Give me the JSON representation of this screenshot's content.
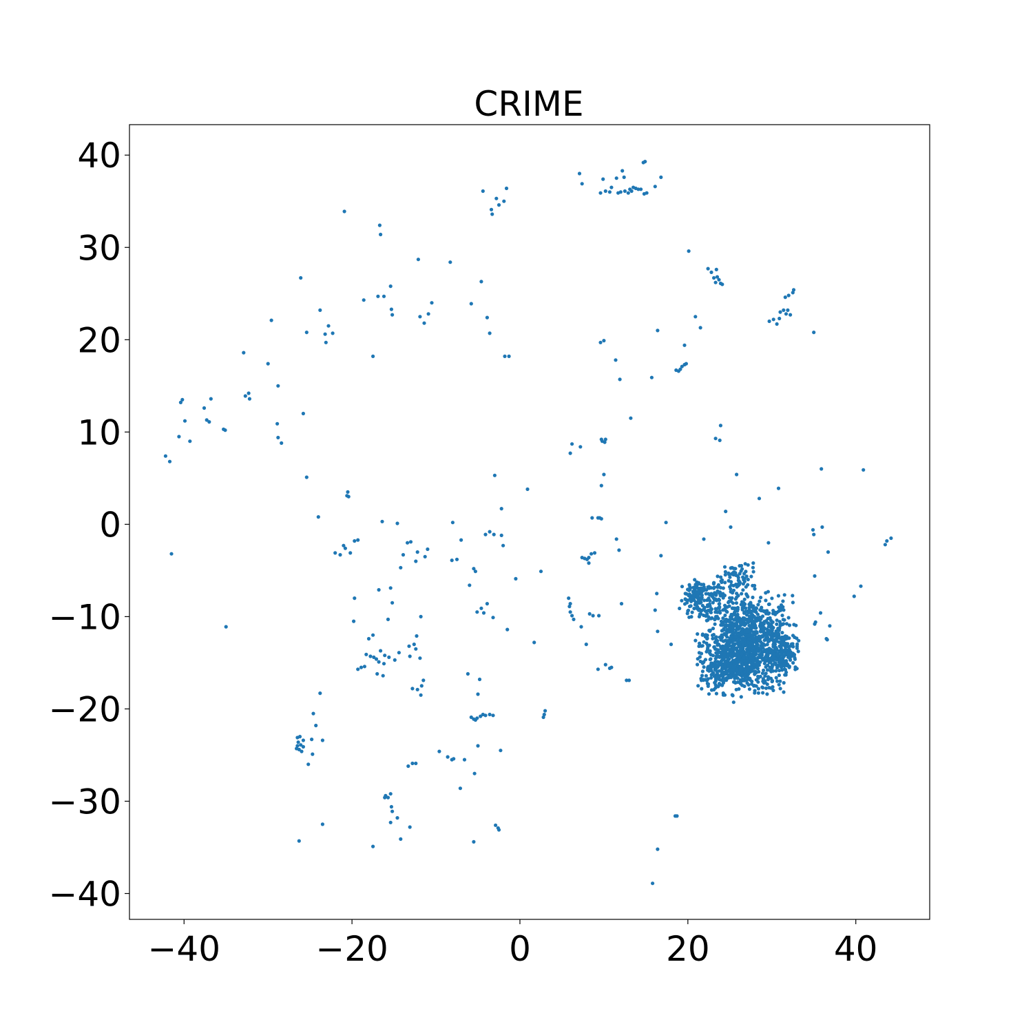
{
  "chart_data": {
    "type": "scatter",
    "title": "CRIME",
    "xlabel": "",
    "ylabel": "",
    "xlim": [
      -46.5,
      48.8
    ],
    "ylim": [
      -42.8,
      43.3
    ],
    "xticks": [
      -40,
      -20,
      0,
      20,
      40
    ],
    "yticks": [
      -40,
      -30,
      -20,
      -10,
      0,
      10,
      20,
      30,
      40
    ],
    "xtick_labels": [
      "−40",
      "−20",
      "0",
      "20",
      "40"
    ],
    "ytick_labels": [
      "−40",
      "−30",
      "−20",
      "−10",
      "0",
      "10",
      "20",
      "30",
      "40"
    ],
    "grid": false,
    "marker_color": "#1f77b4",
    "points": [
      [
        -42.2,
        7.4
      ],
      [
        -41.7,
        6.8
      ],
      [
        -41.5,
        -3.2
      ],
      [
        -40.6,
        9.5
      ],
      [
        -40.4,
        13.2
      ],
      [
        -40.2,
        13.5
      ],
      [
        -39.9,
        11.2
      ],
      [
        -39.3,
        9.0
      ],
      [
        -37.6,
        12.6
      ],
      [
        -37.3,
        11.3
      ],
      [
        -37.0,
        11.1
      ],
      [
        -36.8,
        13.6
      ],
      [
        -35.3,
        10.3
      ],
      [
        -35.1,
        10.2
      ],
      [
        -35.0,
        -11.1
      ],
      [
        -32.9,
        18.6
      ],
      [
        -32.7,
        13.9
      ],
      [
        -32.3,
        14.2
      ],
      [
        -32.2,
        13.6
      ],
      [
        -30.0,
        17.4
      ],
      [
        -29.6,
        22.1
      ],
      [
        -28.9,
        10.9
      ],
      [
        -28.8,
        15.0
      ],
      [
        -28.8,
        9.4
      ],
      [
        -28.4,
        8.8
      ],
      [
        -26.1,
        26.7
      ],
      [
        -25.8,
        12.0
      ],
      [
        -25.4,
        20.8
      ],
      [
        -25.4,
        5.1
      ],
      [
        -24.0,
        0.8
      ],
      [
        -23.8,
        23.2
      ],
      [
        -23.2,
        20.6
      ],
      [
        -23.1,
        19.7
      ],
      [
        -22.8,
        21.5
      ],
      [
        -22.3,
        20.7
      ],
      [
        -20.9,
        33.9
      ],
      [
        -20.6,
        3.1
      ],
      [
        -20.5,
        3.5
      ],
      [
        -20.4,
        3.0
      ],
      [
        -22.0,
        -3.1
      ],
      [
        -21.4,
        -3.3
      ],
      [
        -21.0,
        -2.3
      ],
      [
        -20.8,
        -2.6
      ],
      [
        -20.2,
        -3.1
      ],
      [
        -19.7,
        -1.8
      ],
      [
        -19.3,
        -1.7
      ],
      [
        -18.6,
        24.3
      ],
      [
        -17.5,
        18.2
      ],
      [
        -16.9,
        24.7
      ],
      [
        -16.7,
        32.4
      ],
      [
        -16.6,
        31.4
      ],
      [
        -16.2,
        24.7
      ],
      [
        -15.4,
        25.8
      ],
      [
        -15.3,
        23.3
      ],
      [
        -15.2,
        22.7
      ],
      [
        -16.4,
        0.3
      ],
      [
        -14.6,
        0.1
      ],
      [
        -12.1,
        28.7
      ],
      [
        -11.9,
        22.5
      ],
      [
        -11.4,
        21.8
      ],
      [
        -10.9,
        22.8
      ],
      [
        -10.5,
        24.0
      ],
      [
        -8.3,
        28.4
      ],
      [
        -5.8,
        23.9
      ],
      [
        -4.6,
        26.3
      ],
      [
        -4.4,
        36.1
      ],
      [
        -3.9,
        22.4
      ],
      [
        -3.6,
        20.7
      ],
      [
        -3.4,
        34.1
      ],
      [
        -3.3,
        33.6
      ],
      [
        -2.8,
        35.3
      ],
      [
        -2.5,
        34.6
      ],
      [
        -1.9,
        35.0
      ],
      [
        -1.6,
        36.4
      ],
      [
        -1.8,
        18.2
      ],
      [
        -1.3,
        18.2
      ],
      [
        -2.2,
        1.7
      ],
      [
        -2.2,
        -1.2
      ],
      [
        -2.0,
        -2.3
      ],
      [
        -3.6,
        -0.8
      ],
      [
        -4.1,
        -1.1
      ],
      [
        -3.1,
        -1.1
      ],
      [
        -13.4,
        -2.0
      ],
      [
        -13.0,
        -1.9
      ],
      [
        -12.2,
        -3.0
      ],
      [
        -11.3,
        -3.5
      ],
      [
        -11.0,
        -2.7
      ],
      [
        -13.9,
        -3.3
      ],
      [
        -14.2,
        -4.7
      ],
      [
        -12.4,
        -4.0
      ],
      [
        -15.4,
        -6.9
      ],
      [
        -16.8,
        -7.1
      ],
      [
        -15.2,
        -8.5
      ],
      [
        -19.7,
        -8.0
      ],
      [
        -19.8,
        -10.5
      ],
      [
        -18.0,
        -12.4
      ],
      [
        -17.5,
        -12.0
      ],
      [
        -18.3,
        -14.1
      ],
      [
        -19.3,
        -15.7
      ],
      [
        -18.9,
        -15.5
      ],
      [
        -18.5,
        -15.4
      ],
      [
        -17.8,
        -14.3
      ],
      [
        -17.4,
        -14.4
      ],
      [
        -17.1,
        -14.6
      ],
      [
        -16.6,
        -13.7
      ],
      [
        -16.1,
        -14.2
      ],
      [
        -16.8,
        -14.9
      ],
      [
        -16.2,
        -15.1
      ],
      [
        -15.6,
        -14.4
      ],
      [
        -14.9,
        -14.7
      ],
      [
        -14.4,
        -13.9
      ],
      [
        -16.3,
        -16.4
      ],
      [
        -17.0,
        -16.2
      ],
      [
        -15.7,
        -10.3
      ],
      [
        -13.2,
        -13.2
      ],
      [
        -13.1,
        -14.3
      ],
      [
        -12.6,
        -13.0
      ],
      [
        -12.4,
        -13.5
      ],
      [
        -11.9,
        -14.5
      ],
      [
        -11.8,
        -10.0
      ],
      [
        -12.3,
        -12.1
      ],
      [
        -12.8,
        -17.8
      ],
      [
        -12.2,
        -17.9
      ],
      [
        -11.8,
        -18.5
      ],
      [
        -11.5,
        -16.9
      ],
      [
        -11.7,
        -17.5
      ],
      [
        -9.6,
        -24.6
      ],
      [
        -8.6,
        -25.2
      ],
      [
        -8.1,
        -25.5
      ],
      [
        -7.9,
        -25.4
      ],
      [
        -7.1,
        -28.6
      ],
      [
        -6.6,
        -25.5
      ],
      [
        -6.2,
        -16.2
      ],
      [
        -5.8,
        -20.9
      ],
      [
        -5.5,
        -21.1
      ],
      [
        -5.3,
        -21.2
      ],
      [
        -5.1,
        -21.0
      ],
      [
        -4.7,
        -20.8
      ],
      [
        -4.4,
        -20.6
      ],
      [
        -4.1,
        -20.7
      ],
      [
        -3.6,
        -20.6
      ],
      [
        -3.2,
        -20.7
      ],
      [
        -5.0,
        -18.4
      ],
      [
        -4.8,
        -16.8
      ],
      [
        -5.0,
        -24.0
      ],
      [
        -5.4,
        -27.0
      ],
      [
        -5.5,
        -34.4
      ],
      [
        -2.9,
        -32.6
      ],
      [
        -2.6,
        -32.9
      ],
      [
        -2.5,
        -33.1
      ],
      [
        -2.3,
        -24.5
      ],
      [
        -8.1,
        -3.9
      ],
      [
        -7.5,
        -3.8
      ],
      [
        -8.0,
        0.2
      ],
      [
        -7.0,
        -1.7
      ],
      [
        -6.0,
        -6.6
      ],
      [
        -5.5,
        -4.8
      ],
      [
        -5.3,
        -5.1
      ],
      [
        -5.1,
        -9.5
      ],
      [
        -4.6,
        -9.1
      ],
      [
        -3.9,
        -8.6
      ],
      [
        -4.3,
        -9.6
      ],
      [
        -3.2,
        -10.1
      ],
      [
        -1.5,
        -11.4
      ],
      [
        -3.0,
        5.3
      ],
      [
        0.9,
        3.8
      ],
      [
        -0.5,
        -5.9
      ],
      [
        2.5,
        -5.1
      ],
      [
        1.7,
        -12.8
      ],
      [
        3.0,
        -20.2
      ],
      [
        2.9,
        -20.6
      ],
      [
        2.8,
        -20.9
      ],
      [
        5.8,
        -8.0
      ],
      [
        5.9,
        -8.9
      ],
      [
        6.0,
        -8.6
      ],
      [
        6.0,
        -9.5
      ],
      [
        6.2,
        -9.9
      ],
      [
        6.4,
        -10.3
      ],
      [
        7.3,
        -11.1
      ],
      [
        7.9,
        -13.0
      ],
      [
        7.4,
        -3.6
      ],
      [
        7.7,
        -3.7
      ],
      [
        8.0,
        -3.8
      ],
      [
        8.2,
        -4.2
      ],
      [
        8.2,
        -3.6
      ],
      [
        8.5,
        -3.2
      ],
      [
        8.9,
        -3.1
      ],
      [
        8.3,
        -9.7
      ],
      [
        8.7,
        -9.9
      ],
      [
        9.4,
        -9.9
      ],
      [
        9.3,
        -15.7
      ],
      [
        10.2,
        -15.2
      ],
      [
        10.7,
        -15.6
      ],
      [
        10.9,
        -15.5
      ],
      [
        12.1,
        -8.6
      ],
      [
        12.7,
        -16.9
      ],
      [
        13.0,
        -16.9
      ],
      [
        11.8,
        -2.8
      ],
      [
        11.5,
        -1.6
      ],
      [
        8.6,
        0.7
      ],
      [
        9.3,
        0.7
      ],
      [
        9.5,
        0.7
      ],
      [
        9.7,
        0.6
      ],
      [
        9.7,
        4.2
      ],
      [
        10.0,
        5.4
      ],
      [
        6.0,
        7.7
      ],
      [
        6.2,
        8.7
      ],
      [
        7.2,
        8.4
      ],
      [
        9.7,
        9.2
      ],
      [
        9.8,
        9.0
      ],
      [
        10.1,
        8.9
      ],
      [
        10.2,
        9.2
      ],
      [
        13.2,
        11.5
      ],
      [
        11.4,
        17.8
      ],
      [
        11.9,
        15.7
      ],
      [
        9.6,
        19.7
      ],
      [
        10.0,
        19.9
      ],
      [
        7.1,
        38.0
      ],
      [
        7.4,
        36.9
      ],
      [
        9.6,
        35.9
      ],
      [
        9.9,
        37.4
      ],
      [
        10.2,
        36.1
      ],
      [
        10.7,
        36.0
      ],
      [
        10.9,
        36.5
      ],
      [
        11.5,
        37.5
      ],
      [
        11.7,
        35.9
      ],
      [
        12.0,
        36.0
      ],
      [
        12.2,
        38.3
      ],
      [
        12.4,
        37.6
      ],
      [
        12.5,
        36.1
      ],
      [
        12.9,
        35.9
      ],
      [
        13.1,
        36.3
      ],
      [
        13.3,
        36.1
      ],
      [
        13.5,
        36.5
      ],
      [
        13.8,
        36.4
      ],
      [
        14.1,
        36.3
      ],
      [
        14.4,
        36.3
      ],
      [
        14.7,
        39.2
      ],
      [
        14.9,
        39.3
      ],
      [
        14.8,
        35.8
      ],
      [
        15.1,
        35.9
      ],
      [
        16.1,
        36.6
      ],
      [
        16.4,
        21.0
      ],
      [
        16.8,
        37.6
      ],
      [
        15.7,
        15.9
      ],
      [
        18.6,
        16.7
      ],
      [
        18.9,
        16.6
      ],
      [
        19.1,
        16.8
      ],
      [
        19.3,
        17.1
      ],
      [
        19.6,
        17.3
      ],
      [
        19.8,
        17.4
      ],
      [
        19.6,
        19.4
      ],
      [
        20.1,
        29.6
      ],
      [
        20.9,
        22.5
      ],
      [
        21.5,
        21.3
      ],
      [
        22.4,
        27.7
      ],
      [
        22.8,
        27.3
      ],
      [
        23.1,
        26.7
      ],
      [
        23.3,
        26.2
      ],
      [
        23.4,
        27.6
      ],
      [
        23.5,
        26.8
      ],
      [
        23.7,
        26.5
      ],
      [
        23.9,
        26.1
      ],
      [
        24.1,
        26.0
      ],
      [
        23.9,
        10.7
      ],
      [
        23.3,
        9.3
      ],
      [
        23.8,
        9.1
      ],
      [
        17.4,
        0.2
      ],
      [
        16.8,
        -3.4
      ],
      [
        16.3,
        -7.5
      ],
      [
        16.1,
        -9.3
      ],
      [
        16.4,
        -11.6
      ],
      [
        18.0,
        -13.0
      ],
      [
        19.7,
        -7.5
      ],
      [
        20.0,
        -9.4
      ],
      [
        21.4,
        -8.0
      ],
      [
        21.9,
        -1.6
      ],
      [
        24.5,
        1.4
      ],
      [
        25.1,
        -0.3
      ],
      [
        25.8,
        5.4
      ],
      [
        28.5,
        2.8
      ],
      [
        29.6,
        -2.0
      ],
      [
        30.8,
        3.9
      ],
      [
        34.9,
        -0.6
      ],
      [
        35.0,
        -1.1
      ],
      [
        35.1,
        -5.6
      ],
      [
        36.0,
        -0.3
      ],
      [
        36.7,
        -3.0
      ],
      [
        35.2,
        -10.6
      ],
      [
        35.1,
        -10.8
      ],
      [
        35.8,
        -9.6
      ],
      [
        36.5,
        -12.4
      ],
      [
        36.6,
        -12.5
      ],
      [
        36.9,
        -11.0
      ],
      [
        35.9,
        6.0
      ],
      [
        39.8,
        -7.8
      ],
      [
        40.6,
        -6.7
      ],
      [
        40.9,
        5.9
      ],
      [
        43.5,
        -2.2
      ],
      [
        43.7,
        -1.8
      ],
      [
        44.2,
        -1.5
      ],
      [
        29.7,
        22.0
      ],
      [
        30.2,
        22.2
      ],
      [
        30.6,
        21.7
      ],
      [
        30.9,
        22.3
      ],
      [
        31.0,
        23.0
      ],
      [
        31.4,
        23.2
      ],
      [
        31.7,
        22.8
      ],
      [
        31.9,
        23.2
      ],
      [
        32.2,
        22.7
      ],
      [
        31.6,
        24.6
      ],
      [
        32.0,
        24.8
      ],
      [
        32.5,
        25.1
      ],
      [
        32.6,
        25.4
      ],
      [
        35.0,
        20.8
      ],
      [
        18.5,
        -31.6
      ],
      [
        18.7,
        -31.6
      ],
      [
        16.4,
        -35.2
      ],
      [
        15.8,
        -38.9
      ],
      [
        -26.5,
        -23.1
      ],
      [
        -26.4,
        -23.6
      ],
      [
        -26.5,
        -24.0
      ],
      [
        -26.3,
        -24.4
      ],
      [
        -26.1,
        -23.9
      ],
      [
        -26.0,
        -24.6
      ],
      [
        -25.8,
        -23.4
      ],
      [
        -25.8,
        -24.1
      ],
      [
        -26.6,
        -24.3
      ],
      [
        -26.2,
        -23.0
      ],
      [
        -24.8,
        -23.3
      ],
      [
        -24.6,
        -20.5
      ],
      [
        -24.3,
        -21.8
      ],
      [
        -25.2,
        -26.0
      ],
      [
        -24.7,
        -24.9
      ],
      [
        -23.5,
        -23.4
      ],
      [
        -23.8,
        -18.3
      ],
      [
        -23.5,
        -32.5
      ],
      [
        -26.3,
        -34.3
      ],
      [
        -16.0,
        -29.4
      ],
      [
        -15.7,
        -29.6
      ],
      [
        -15.4,
        -29.2
      ],
      [
        -15.3,
        -30.6
      ],
      [
        -15.2,
        -31.1
      ],
      [
        -15.4,
        -32.3
      ],
      [
        -14.6,
        -31.8
      ],
      [
        -17.5,
        -34.9
      ],
      [
        -14.2,
        -34.1
      ],
      [
        -13.1,
        -32.8
      ],
      [
        -13.3,
        -26.2
      ],
      [
        -12.8,
        -25.9
      ],
      [
        -12.4,
        -25.9
      ],
      [
        -16.1,
        -29.6
      ]
    ],
    "cluster": {
      "center": [
        27.0,
        -13.0
      ],
      "spread": [
        2.7,
        2.6
      ],
      "count": 1100
    },
    "cluster_arms": [
      {
        "center": [
          21.6,
          -7.9
        ],
        "spread": [
          1.3,
          1.0
        ],
        "count": 160
      },
      {
        "center": [
          25.8,
          -6.2
        ],
        "spread": [
          1.2,
          1.1
        ],
        "count": 80
      },
      {
        "center": [
          31.3,
          -13.8
        ],
        "spread": [
          0.9,
          1.0
        ],
        "count": 120
      },
      {
        "center": [
          24.4,
          -15.4
        ],
        "spread": [
          1.4,
          1.0
        ],
        "count": 200
      }
    ]
  }
}
